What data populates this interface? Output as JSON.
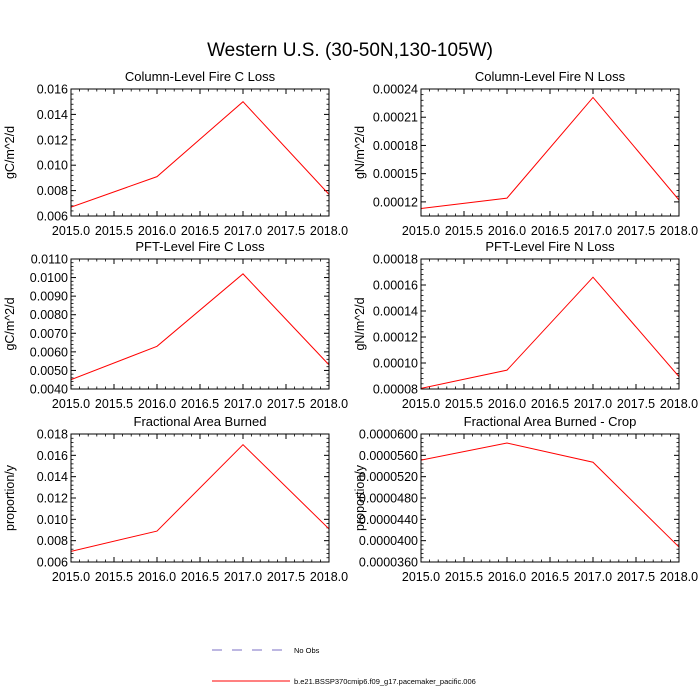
{
  "figure": {
    "title": "Western U.S. (30-50N,130-105W)"
  },
  "legend": {
    "items": [
      {
        "label": "No Obs",
        "style": "dashed",
        "color": "#7b6fc4"
      },
      {
        "label": "b.e21.BSSP370cmip6.f09_g17.pacemaker_pacific.006",
        "style": "solid",
        "color": "#ff0000"
      }
    ]
  },
  "chart_data": [
    {
      "type": "line",
      "title": "Column-Level Fire C Loss",
      "ylabel": "gC/m^2/d",
      "xlim": [
        2015.0,
        2018.0
      ],
      "ylim": [
        0.006,
        0.016
      ],
      "xticks": [
        2015.0,
        2015.5,
        2016.0,
        2016.5,
        2017.0,
        2017.5,
        2018.0
      ],
      "xticklabels": [
        "2015.0",
        "2015.5",
        "2016.0",
        "2016.5",
        "2017.0",
        "2017.5",
        "2018.0"
      ],
      "yticks": [
        0.006,
        0.008,
        0.01,
        0.012,
        0.014,
        0.016
      ],
      "yticklabels": [
        "0.006",
        "0.008",
        "0.010",
        "0.012",
        "0.014",
        "0.016"
      ],
      "series": [
        {
          "name": "b.e21.BSSP370cmip6.f09_g17.pacemaker_pacific.006",
          "color": "#ff0000",
          "x": [
            2015,
            2016,
            2017,
            2018
          ],
          "y": [
            0.0067,
            0.0091,
            0.015,
            0.0077
          ]
        }
      ]
    },
    {
      "type": "line",
      "title": "Column-Level Fire N Loss",
      "ylabel": "gN/m^2/d",
      "xlim": [
        2015.0,
        2018.0
      ],
      "ylim": [
        0.000105,
        0.00024
      ],
      "xticks": [
        2015.0,
        2015.5,
        2016.0,
        2016.5,
        2017.0,
        2017.5,
        2018.0
      ],
      "xticklabels": [
        "2015.0",
        "2015.5",
        "2016.0",
        "2016.5",
        "2017.0",
        "2017.5",
        "2018.0"
      ],
      "yticks": [
        0.00012,
        0.00015,
        0.00018,
        0.00021,
        0.00024
      ],
      "yticklabels": [
        "0.00012",
        "0.00015",
        "0.00018",
        "0.00021",
        "0.00024"
      ],
      "series": [
        {
          "name": "b.e21.BSSP370cmip6.f09_g17.pacemaker_pacific.006",
          "color": "#ff0000",
          "x": [
            2015,
            2016,
            2017,
            2018
          ],
          "y": [
            0.000113,
            0.000124,
            0.000231,
            0.000122
          ]
        }
      ]
    },
    {
      "type": "line",
      "title": "PFT-Level Fire C Loss",
      "ylabel": "gC/m^2/d",
      "xlim": [
        2015.0,
        2018.0
      ],
      "ylim": [
        0.004,
        0.011
      ],
      "xticks": [
        2015.0,
        2015.5,
        2016.0,
        2016.5,
        2017.0,
        2017.5,
        2018.0
      ],
      "xticklabels": [
        "2015.0",
        "2015.5",
        "2016.0",
        "2016.5",
        "2017.0",
        "2017.5",
        "2018.0"
      ],
      "yticks": [
        0.004,
        0.005,
        0.006,
        0.007,
        0.008,
        0.009,
        0.01,
        0.011
      ],
      "yticklabels": [
        "0.0040",
        "0.0050",
        "0.0060",
        "0.0070",
        "0.0080",
        "0.0090",
        "0.0100",
        "0.0110"
      ],
      "series": [
        {
          "name": "b.e21.BSSP370cmip6.f09_g17.pacemaker_pacific.006",
          "color": "#ff0000",
          "x": [
            2015,
            2016,
            2017,
            2018
          ],
          "y": [
            0.0045,
            0.0063,
            0.0102,
            0.0053
          ]
        }
      ]
    },
    {
      "type": "line",
      "title": "PFT-Level Fire N Loss",
      "ylabel": "gN/m^2/d",
      "xlim": [
        2015.0,
        2018.0
      ],
      "ylim": [
        8e-05,
        0.00018
      ],
      "xticks": [
        2015.0,
        2015.5,
        2016.0,
        2016.5,
        2017.0,
        2017.5,
        2018.0
      ],
      "xticklabels": [
        "2015.0",
        "2015.5",
        "2016.0",
        "2016.5",
        "2017.0",
        "2017.5",
        "2018.0"
      ],
      "yticks": [
        8e-05,
        0.0001,
        0.00012,
        0.00014,
        0.00016,
        0.00018
      ],
      "yticklabels": [
        "0.00008",
        "0.00010",
        "0.00012",
        "0.00014",
        "0.00016",
        "0.00018"
      ],
      "series": [
        {
          "name": "b.e21.BSSP370cmip6.f09_g17.pacemaker_pacific.006",
          "color": "#ff0000",
          "x": [
            2015,
            2016,
            2017,
            2018
          ],
          "y": [
            8.05e-05,
            9.45e-05,
            0.000166,
            8.95e-05
          ]
        }
      ]
    },
    {
      "type": "line",
      "title": "Fractional Area Burned",
      "ylabel": "proportion/y",
      "xlim": [
        2015.0,
        2018.0
      ],
      "ylim": [
        0.006,
        0.018
      ],
      "xticks": [
        2015.0,
        2015.5,
        2016.0,
        2016.5,
        2017.0,
        2017.5,
        2018.0
      ],
      "xticklabels": [
        "2015.0",
        "2015.5",
        "2016.0",
        "2016.5",
        "2017.0",
        "2017.5",
        "2018.0"
      ],
      "yticks": [
        0.006,
        0.008,
        0.01,
        0.012,
        0.014,
        0.016,
        0.018
      ],
      "yticklabels": [
        "0.006",
        "0.008",
        "0.010",
        "0.012",
        "0.014",
        "0.016",
        "0.018"
      ],
      "series": [
        {
          "name": "b.e21.BSSP370cmip6.f09_g17.pacemaker_pacific.006",
          "color": "#ff0000",
          "x": [
            2015,
            2016,
            2017,
            2018
          ],
          "y": [
            0.007,
            0.0089,
            0.017,
            0.0091
          ]
        }
      ]
    },
    {
      "type": "line",
      "title": "Fractional Area Burned - Crop",
      "ylabel": "proportion/y",
      "xlim": [
        2015.0,
        2018.0
      ],
      "ylim": [
        3.6e-05,
        6e-05
      ],
      "xticks": [
        2015.0,
        2015.5,
        2016.0,
        2016.5,
        2017.0,
        2017.5,
        2018.0
      ],
      "xticklabels": [
        "2015.0",
        "2015.5",
        "2016.0",
        "2016.5",
        "2017.0",
        "2017.5",
        "2018.0"
      ],
      "yticks": [
        3.6e-05,
        4e-05,
        4.4e-05,
        4.8e-05,
        5.2e-05,
        5.6e-05,
        6e-05
      ],
      "yticklabels": [
        "0.0000360",
        "0.0000400",
        "0.0000440",
        "0.0000480",
        "0.0000520",
        "0.0000560",
        "0.0000600"
      ],
      "series": [
        {
          "name": "b.e21.BSSP370cmip6.f09_g17.pacemaker_pacific.006",
          "color": "#ff0000",
          "x": [
            2015,
            2016,
            2017,
            2018
          ],
          "y": [
            5.51e-05,
            5.83e-05,
            5.47e-05,
            3.88e-05
          ]
        }
      ]
    }
  ]
}
